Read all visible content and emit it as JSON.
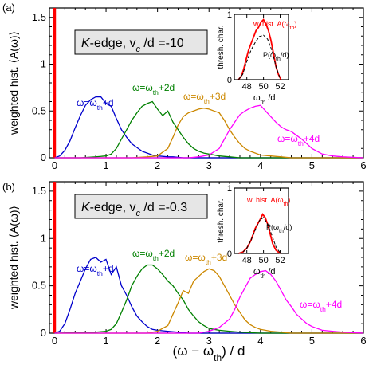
{
  "figure": {
    "xlabel": "(ω − ω",
    "xlabel_sub": "th",
    "xlabel_tail": ") / d"
  },
  "chart_data": [
    {
      "type": "line",
      "panel_label": "(a)",
      "ylabel": "weighted hist. ⟨A(ω)⟩",
      "box_label_pre": "K",
      "box_label_mid": "-edge,  v",
      "box_label_sub": "c",
      "box_label_post": " /d =-10",
      "xlim": [
        -0.1,
        6
      ],
      "ylim": [
        0,
        1.6
      ],
      "xticks": [
        "0",
        "1",
        "2",
        "3",
        "4",
        "5",
        "6"
      ],
      "yticks": [
        "0",
        "0.5",
        "1",
        "1.5"
      ],
      "threshold_line": {
        "x": 0,
        "color": "#ff0000"
      },
      "series": [
        {
          "name": "ω=ω_th+d",
          "color": "#0000cc",
          "x": [
            0,
            0.1,
            0.2,
            0.3,
            0.4,
            0.5,
            0.6,
            0.7,
            0.8,
            0.9,
            1.0,
            1.1,
            1.2,
            1.3,
            1.4,
            1.5,
            1.6,
            1.7,
            1.8,
            1.9,
            2.0,
            2.1,
            2.2,
            2.3,
            2.4,
            2.5,
            2.6,
            2.8,
            3.0,
            3.5,
            4,
            5,
            6
          ],
          "y": [
            0,
            0.02,
            0.08,
            0.18,
            0.32,
            0.45,
            0.56,
            0.62,
            0.65,
            0.65,
            0.58,
            0.55,
            0.42,
            0.3,
            0.22,
            0.15,
            0.11,
            0.07,
            0.05,
            0.03,
            0.02,
            0.015,
            0.01,
            0.01,
            0.005,
            0,
            0,
            0,
            0,
            0,
            0,
            0,
            0
          ]
        },
        {
          "name": "ω=ω_th+2d",
          "color": "#008000",
          "x": [
            0,
            0.5,
            0.8,
            1.0,
            1.1,
            1.2,
            1.3,
            1.4,
            1.5,
            1.6,
            1.7,
            1.8,
            1.9,
            2.0,
            2.1,
            2.2,
            2.3,
            2.4,
            2.5,
            2.6,
            2.7,
            2.8,
            2.9,
            3.0,
            3.2,
            3.4,
            3.6,
            4,
            5,
            6
          ],
          "y": [
            0,
            0,
            0.01,
            0.02,
            0.04,
            0.1,
            0.2,
            0.3,
            0.4,
            0.48,
            0.55,
            0.58,
            0.6,
            0.52,
            0.45,
            0.5,
            0.38,
            0.3,
            0.22,
            0.15,
            0.1,
            0.07,
            0.05,
            0.04,
            0.02,
            0.01,
            0,
            0,
            0,
            0
          ]
        },
        {
          "name": "ω=ω_th+3d",
          "color": "#cc8800",
          "x": [
            0,
            1.5,
            1.8,
            2.0,
            2.2,
            2.3,
            2.4,
            2.5,
            2.6,
            2.7,
            2.8,
            2.9,
            3.0,
            3.1,
            3.2,
            3.3,
            3.4,
            3.5,
            3.6,
            3.7,
            3.8,
            3.9,
            4.0,
            4.2,
            4.4,
            4.6,
            5,
            6
          ],
          "y": [
            0,
            0,
            0.01,
            0.02,
            0.1,
            0.22,
            0.35,
            0.44,
            0.48,
            0.5,
            0.52,
            0.53,
            0.52,
            0.5,
            0.48,
            0.4,
            0.3,
            0.22,
            0.15,
            0.1,
            0.07,
            0.05,
            0.03,
            0.02,
            0.01,
            0,
            0,
            0
          ]
        },
        {
          "name": "ω=ω_th+4d",
          "color": "#ff00ff",
          "x": [
            0,
            2.6,
            2.8,
            3.0,
            3.2,
            3.4,
            3.5,
            3.6,
            3.7,
            3.8,
            3.9,
            4.0,
            4.1,
            4.2,
            4.3,
            4.4,
            4.5,
            4.6,
            4.7,
            4.8,
            4.9,
            5.0,
            5.1,
            5.2,
            5.4,
            5.6,
            6
          ],
          "y": [
            0,
            0,
            0.01,
            0.03,
            0.1,
            0.3,
            0.38,
            0.46,
            0.5,
            0.53,
            0.55,
            0.56,
            0.5,
            0.44,
            0.38,
            0.33,
            0.3,
            0.28,
            0.24,
            0.2,
            0.15,
            0.1,
            0.07,
            0.04,
            0.02,
            0.01,
            0
          ]
        }
      ],
      "inset": {
        "ylabel": "thresh. char.",
        "xlabel": "ω",
        "xlabel_sub": "th",
        "xlabel_tail": " /d",
        "xlim": [
          46.5,
          53
        ],
        "ylim": [
          0,
          1
        ],
        "xticks": [
          "48",
          "50",
          "52"
        ],
        "yticks": [
          "0",
          "1"
        ],
        "label_hist": "w. hist. A(ω",
        "label_hist_sub": "th",
        "label_hist_tail": ")",
        "label_p": "P(ω",
        "label_p_sub": "th",
        "label_p_tail": "/d)",
        "hist": {
          "color": "#ff0000",
          "x": [
            47,
            47.3,
            47.6,
            47.9,
            48.2,
            48.5,
            48.8,
            49.1,
            49.4,
            49.7,
            50.0,
            50.3,
            50.6,
            50.9,
            51.2,
            51.5,
            51.8,
            52.1
          ],
          "y": [
            0,
            0.05,
            0.15,
            0.3,
            0.45,
            0.55,
            0.65,
            0.75,
            0.8,
            0.88,
            0.92,
            0.85,
            0.75,
            0.6,
            0.4,
            0.2,
            0.08,
            0
          ]
        },
        "p": {
          "color": "#000000",
          "x": [
            47,
            47.5,
            48,
            48.5,
            49,
            49.5,
            50,
            50.5,
            51,
            51.5,
            52
          ],
          "y": [
            0,
            0.08,
            0.28,
            0.45,
            0.57,
            0.66,
            0.68,
            0.62,
            0.45,
            0.2,
            0.02
          ]
        }
      }
    },
    {
      "type": "line",
      "panel_label": "(b)",
      "ylabel": "weighted hist. ⟨A(ω)⟩",
      "box_label_pre": "K",
      "box_label_mid": "-edge,  v",
      "box_label_sub": "c",
      "box_label_post": " /d =-0.3",
      "xlim": [
        -0.1,
        6
      ],
      "ylim": [
        0,
        1.6
      ],
      "xticks": [
        "0",
        "1",
        "2",
        "3",
        "4",
        "5",
        "6"
      ],
      "yticks": [
        "0",
        "0.5",
        "1",
        "1.5"
      ],
      "threshold_line": {
        "x": 0,
        "color": "#ff0000"
      },
      "series": [
        {
          "name": "ω=ω_th+d",
          "color": "#0000cc",
          "x": [
            0,
            0.1,
            0.2,
            0.3,
            0.4,
            0.5,
            0.6,
            0.7,
            0.8,
            0.9,
            1.0,
            1.1,
            1.2,
            1.3,
            1.4,
            1.5,
            1.6,
            1.7,
            1.8,
            1.9,
            2.0,
            2.2,
            2.4,
            2.6,
            3,
            4,
            5,
            6
          ],
          "y": [
            0,
            0.02,
            0.1,
            0.25,
            0.42,
            0.55,
            0.68,
            0.78,
            0.8,
            0.75,
            0.78,
            0.62,
            0.7,
            0.5,
            0.4,
            0.28,
            0.18,
            0.12,
            0.07,
            0.04,
            0.03,
            0.02,
            0.01,
            0,
            0,
            0,
            0,
            0
          ]
        },
        {
          "name": "ω=ω_th+2d",
          "color": "#008000",
          "x": [
            0,
            0.8,
            1.0,
            1.1,
            1.2,
            1.3,
            1.4,
            1.5,
            1.6,
            1.7,
            1.8,
            1.9,
            2.0,
            2.1,
            2.2,
            2.3,
            2.4,
            2.5,
            2.6,
            2.7,
            2.8,
            2.9,
            3.0,
            3.1,
            3.2,
            3.4,
            3.6,
            4,
            5,
            6
          ],
          "y": [
            0,
            0.01,
            0.02,
            0.04,
            0.1,
            0.22,
            0.35,
            0.5,
            0.6,
            0.68,
            0.72,
            0.72,
            0.68,
            0.62,
            0.55,
            0.5,
            0.42,
            0.35,
            0.25,
            0.18,
            0.12,
            0.08,
            0.05,
            0.04,
            0.03,
            0.02,
            0.01,
            0,
            0,
            0
          ]
        },
        {
          "name": "ω=ω_th+3d",
          "color": "#cc8800",
          "x": [
            0,
            1.8,
            2.0,
            2.2,
            2.3,
            2.4,
            2.5,
            2.6,
            2.7,
            2.8,
            2.9,
            3.0,
            3.1,
            3.2,
            3.3,
            3.4,
            3.5,
            3.6,
            3.7,
            3.8,
            3.9,
            4.0,
            4.2,
            4.4,
            4.6,
            5,
            6
          ],
          "y": [
            0,
            0,
            0.02,
            0.08,
            0.2,
            0.32,
            0.45,
            0.42,
            0.55,
            0.6,
            0.65,
            0.68,
            0.66,
            0.6,
            0.5,
            0.4,
            0.3,
            0.22,
            0.14,
            0.09,
            0.06,
            0.04,
            0.02,
            0.01,
            0,
            0,
            0
          ]
        },
        {
          "name": "ω=ω_th+4d",
          "color": "#ff00ff",
          "x": [
            0,
            2.8,
            3.0,
            3.2,
            3.4,
            3.5,
            3.6,
            3.7,
            3.8,
            3.9,
            4.0,
            4.1,
            4.2,
            4.3,
            4.4,
            4.5,
            4.6,
            4.7,
            4.8,
            4.9,
            5.0,
            5.2,
            5.4,
            5.6,
            6
          ],
          "y": [
            0,
            0,
            0.02,
            0.06,
            0.15,
            0.25,
            0.38,
            0.48,
            0.58,
            0.62,
            0.65,
            0.66,
            0.62,
            0.55,
            0.45,
            0.35,
            0.28,
            0.2,
            0.15,
            0.1,
            0.07,
            0.03,
            0.02,
            0.01,
            0
          ]
        }
      ],
      "inset": {
        "ylabel": "thresh. char.",
        "xlabel": "ω",
        "xlabel_sub": "th",
        "xlabel_tail": " /d",
        "xlim": [
          46.5,
          53
        ],
        "ylim": [
          0,
          1
        ],
        "xticks": [
          "48",
          "50",
          "52"
        ],
        "yticks": [
          "0",
          "1"
        ],
        "label_hist": "w. hist. A(ω",
        "label_hist_sub": "th",
        "label_hist_tail": ")",
        "label_p": "P(ω",
        "label_p_sub": "th",
        "label_p_tail": "/d)",
        "hist": {
          "color": "#ff0000",
          "x": [
            47,
            47.5,
            48,
            48.5,
            49,
            49.3,
            49.6,
            49.9,
            50.2,
            50.5,
            50.8,
            51.1,
            51.5,
            52
          ],
          "y": [
            0,
            0.02,
            0.08,
            0.2,
            0.38,
            0.45,
            0.52,
            0.6,
            0.55,
            0.45,
            0.3,
            0.15,
            0.05,
            0
          ]
        },
        "p": {
          "color": "#000000",
          "x": [
            47,
            47.5,
            48,
            48.5,
            49,
            49.5,
            50,
            50.5,
            51,
            51.5,
            52
          ],
          "y": [
            0,
            0.02,
            0.08,
            0.2,
            0.36,
            0.5,
            0.55,
            0.45,
            0.28,
            0.1,
            0.01
          ]
        }
      }
    }
  ]
}
